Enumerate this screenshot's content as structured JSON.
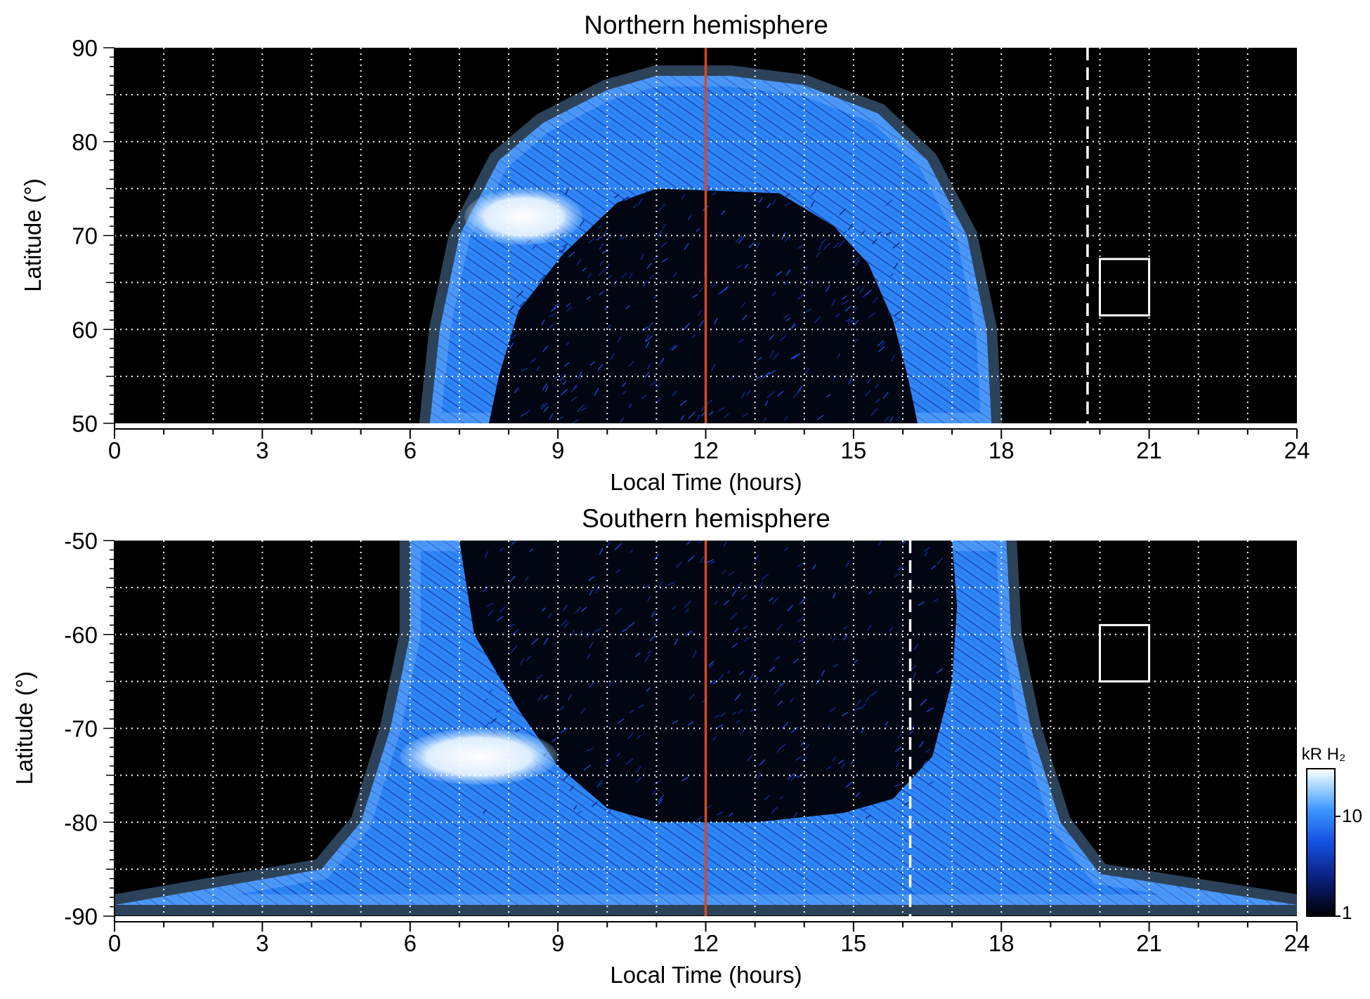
{
  "chart_data": [
    {
      "type": "heatmap",
      "title": "Northern hemisphere",
      "xlabel": "Local Time (hours)",
      "ylabel": "Latitude (°)",
      "xlim": [
        0,
        24
      ],
      "ylim": [
        50,
        90
      ],
      "xticks": [
        0,
        3,
        6,
        9,
        12,
        15,
        18,
        21,
        24
      ],
      "yticks": [
        50,
        60,
        70,
        80,
        90
      ],
      "grid": true,
      "grid_x_step": 1,
      "grid_y_step": 5,
      "red_line_lt": 12,
      "dashed_line_lt": 19.75,
      "box": {
        "lt": [
          20,
          21
        ],
        "lat": [
          61.5,
          67.5
        ]
      },
      "oval": {
        "outer_edge": [
          [
            6.4,
            50
          ],
          [
            6.6,
            60
          ],
          [
            7.0,
            70
          ],
          [
            7.8,
            78
          ],
          [
            8.7,
            82
          ],
          [
            10.0,
            85.5
          ],
          [
            11.0,
            87
          ],
          [
            12.5,
            87
          ],
          [
            14.0,
            86
          ],
          [
            15.5,
            83
          ],
          [
            16.5,
            78
          ],
          [
            17.3,
            70
          ],
          [
            17.7,
            60
          ],
          [
            17.8,
            50
          ]
        ],
        "inner_edge": [
          [
            7.6,
            50
          ],
          [
            7.8,
            55
          ],
          [
            8.2,
            62
          ],
          [
            9.1,
            68
          ],
          [
            10.2,
            73.5
          ],
          [
            11.0,
            75
          ],
          [
            13.5,
            74.5
          ],
          [
            14.6,
            71
          ],
          [
            15.3,
            67
          ],
          [
            15.8,
            61
          ],
          [
            16.1,
            55
          ],
          [
            16.3,
            50
          ]
        ],
        "bright_spot": {
          "lt": [
            7.1,
            9.5
          ],
          "lat": [
            69,
            75
          ]
        }
      }
    },
    {
      "type": "heatmap",
      "title": "Southern hemisphere",
      "xlabel": "Local Time (hours)",
      "ylabel": "Latitude (°)",
      "xlim": [
        0,
        24
      ],
      "ylim": [
        -90,
        -50
      ],
      "xticks": [
        0,
        3,
        6,
        9,
        12,
        15,
        18,
        21,
        24
      ],
      "yticks": [
        -50,
        -60,
        -70,
        -80,
        -90
      ],
      "grid": true,
      "grid_x_step": 1,
      "grid_y_step": 5,
      "red_line_lt": 12,
      "dashed_line_lt": 16.15,
      "box": {
        "lt": [
          20,
          21
        ],
        "lat": [
          -65,
          -59
        ]
      },
      "oval": {
        "outer_edge": [
          [
            6.0,
            -50
          ],
          [
            6.0,
            -60
          ],
          [
            5.6,
            -70
          ],
          [
            5.0,
            -80
          ],
          [
            4.2,
            -85
          ],
          [
            0,
            -88.8
          ],
          [
            24,
            -88.8
          ],
          [
            20,
            -85.5
          ],
          [
            19.2,
            -80
          ],
          [
            18.6,
            -70
          ],
          [
            18.2,
            -60
          ],
          [
            18.1,
            -50
          ]
        ],
        "inner_edge": [
          [
            7.0,
            -50
          ],
          [
            7.3,
            -60
          ],
          [
            8.2,
            -68
          ],
          [
            9.0,
            -74
          ],
          [
            10.0,
            -78.5
          ],
          [
            11.0,
            -80
          ],
          [
            13.0,
            -80
          ],
          [
            14.8,
            -79
          ],
          [
            15.8,
            -77.5
          ],
          [
            16.6,
            -73
          ],
          [
            17.0,
            -65
          ],
          [
            17.1,
            -57
          ],
          [
            17.0,
            -50
          ]
        ],
        "bright_spot": {
          "lt": [
            5.8,
            9.0
          ],
          "lat": [
            -76,
            -70
          ]
        }
      }
    }
  ],
  "colorbar": {
    "label": "kR H₂",
    "tick_labels": [
      "1",
      "10"
    ],
    "colors": [
      "#000000",
      "#0a1e7a",
      "#1450e0",
      "#3c96ff",
      "#b4ddff",
      "#ffffff"
    ]
  }
}
